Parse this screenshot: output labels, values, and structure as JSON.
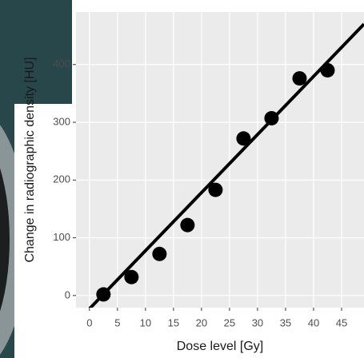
{
  "chart_data": {
    "type": "scatter",
    "x_label": "Dose level [Gy]",
    "y_label": "Change in radiographic density [HU]",
    "x": [
      2.5,
      7.5,
      12.5,
      17.5,
      22.5,
      27.5,
      32.5,
      37.5,
      42.5
    ],
    "values": [
      2,
      32,
      72,
      122,
      183,
      272,
      307,
      376,
      390
    ],
    "color": "#000000",
    "fit": {
      "x": [
        0,
        49
      ],
      "values": [
        -23,
        470
      ]
    },
    "xlim": [
      -2.4,
      49
    ],
    "ylim": [
      -21,
      491
    ],
    "xticks": [
      0,
      5,
      10,
      15,
      20,
      25,
      30,
      35,
      40,
      45
    ],
    "yticks": [
      0,
      100,
      200,
      300,
      400
    ],
    "grid": true
  }
}
